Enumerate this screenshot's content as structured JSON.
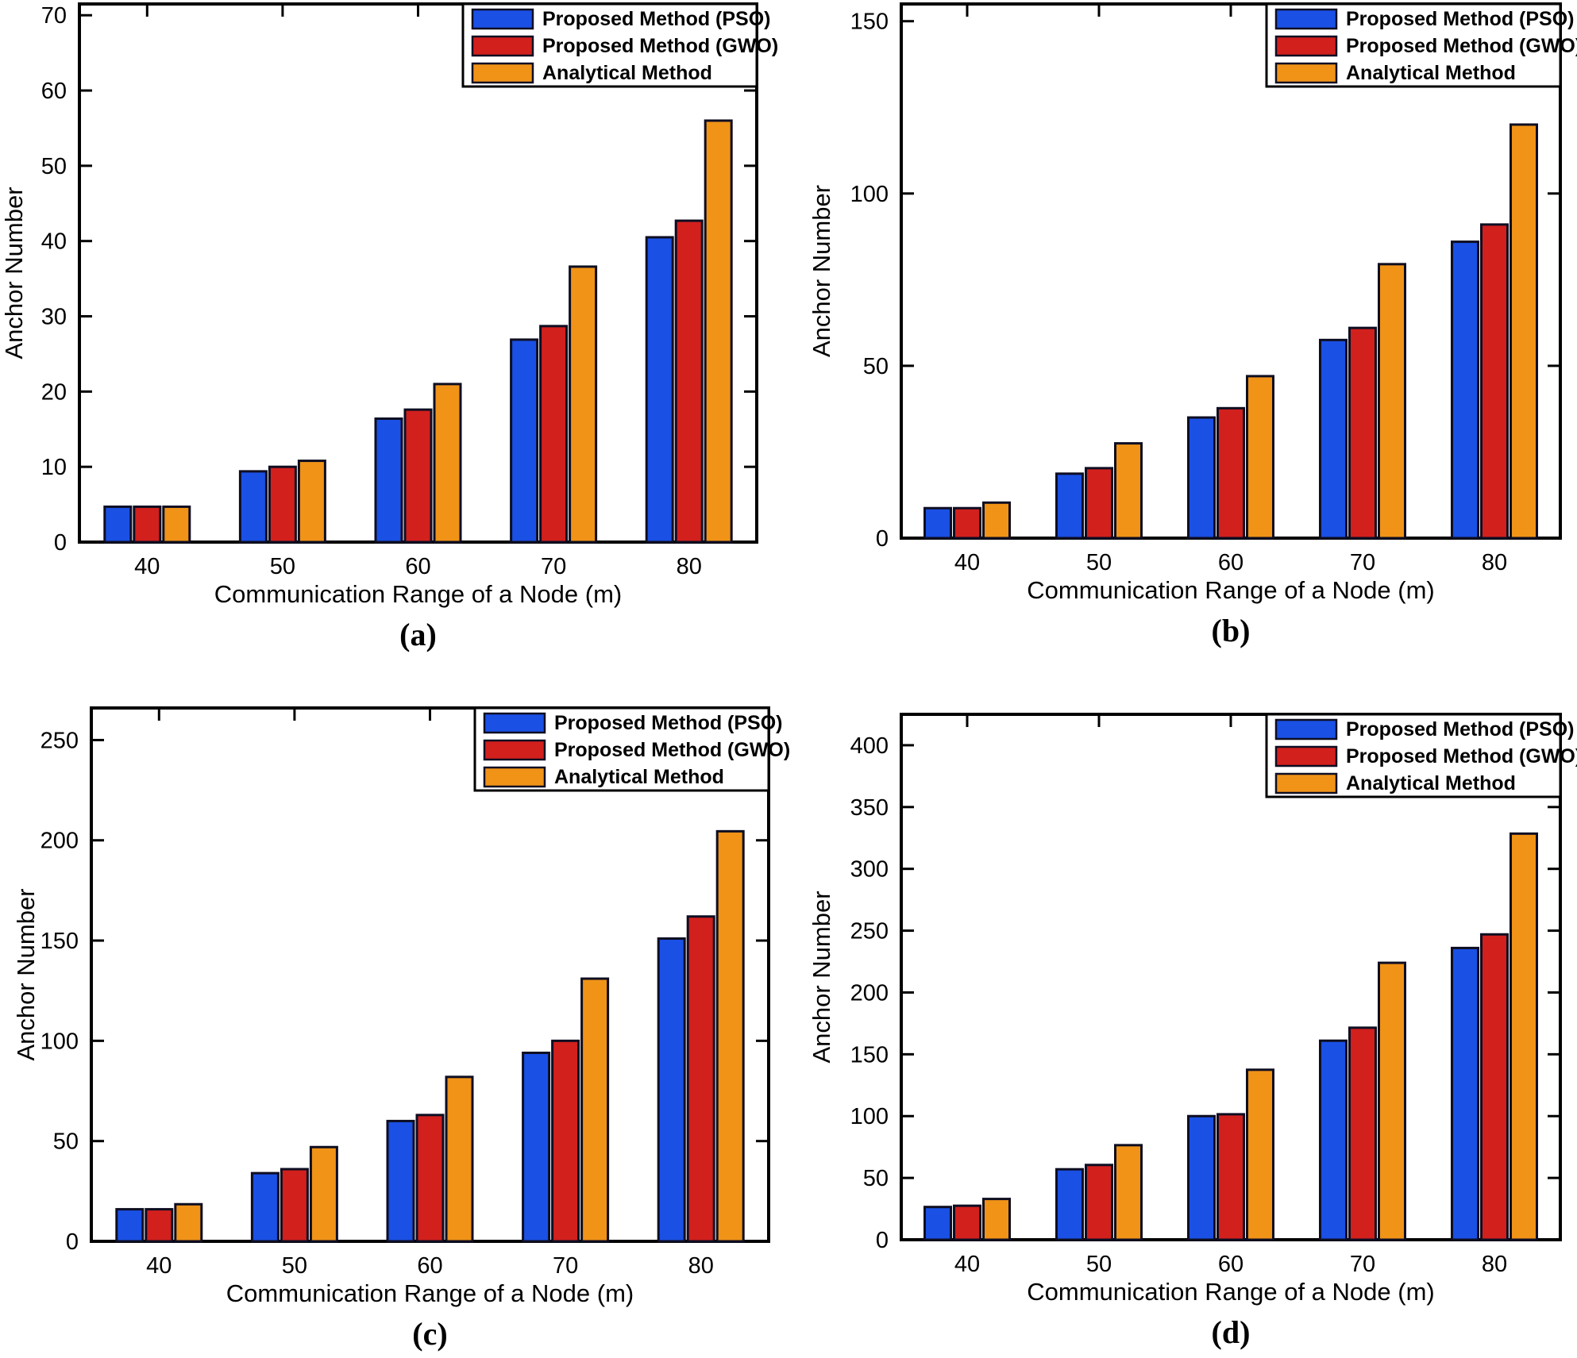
{
  "figure": {
    "xlabel": "Communication Range of a Node (m)",
    "ylabel": "Anchor Number",
    "legend": {
      "position": "top-right-inside",
      "labels": [
        "Proposed Method (PSO)",
        "Proposed Method (GWO)",
        "Analytical Method"
      ]
    },
    "colors": {
      "pso": "#1A50E4",
      "gwo": "#D2201D",
      "analytical": "#F09317",
      "bar_edge": "#0E0E22",
      "axis": "#000000",
      "background": "#ffffff"
    }
  },
  "chart_data": [
    {
      "type": "bar",
      "caption": "(a)",
      "xlabel": "Communication Range of a Node (m)",
      "ylabel": "Anchor Number",
      "grid": false,
      "legend_position": "top-right",
      "categories": [
        40,
        50,
        60,
        70,
        80
      ],
      "yticks": [
        0,
        10,
        20,
        30,
        40,
        50,
        60,
        70
      ],
      "ylim": [
        0,
        71.5
      ],
      "series": [
        {
          "name": "Proposed Method (PSO)",
          "values": [
            4.7,
            9.4,
            16.4,
            26.9,
            40.5
          ]
        },
        {
          "name": "Proposed Method (GWO)",
          "values": [
            4.7,
            10.0,
            17.6,
            28.7,
            42.7
          ]
        },
        {
          "name": "Analytical Method",
          "values": [
            4.7,
            10.8,
            21.0,
            36.6,
            56.0
          ]
        }
      ]
    },
    {
      "type": "bar",
      "caption": "(b)",
      "xlabel": "Communication Range of a Node (m)",
      "ylabel": "Anchor Number",
      "grid": false,
      "legend_position": "top-right",
      "categories": [
        40,
        50,
        60,
        70,
        80
      ],
      "yticks": [
        0,
        50,
        100,
        150
      ],
      "ylim": [
        0,
        155
      ],
      "series": [
        {
          "name": "Proposed Method (PSO)",
          "values": [
            8.7,
            18.7,
            35.0,
            57.5,
            86.0
          ]
        },
        {
          "name": "Proposed Method (GWO)",
          "values": [
            8.7,
            20.3,
            37.7,
            61.0,
            91.0
          ]
        },
        {
          "name": "Analytical Method",
          "values": [
            10.3,
            27.5,
            47.0,
            79.5,
            120.0
          ]
        }
      ]
    },
    {
      "type": "bar",
      "caption": "(c)",
      "xlabel": "Communication Range of a Node (m)",
      "ylabel": "Anchor Number",
      "grid": false,
      "legend_position": "top-right",
      "categories": [
        40,
        50,
        60,
        70,
        80
      ],
      "yticks": [
        0,
        50,
        100,
        150,
        200,
        250
      ],
      "ylim": [
        0,
        266
      ],
      "series": [
        {
          "name": "Proposed Method (PSO)",
          "values": [
            16.0,
            34.0,
            60.0,
            94.0,
            151.0
          ]
        },
        {
          "name": "Proposed Method (GWO)",
          "values": [
            16.0,
            36.0,
            63.0,
            100.0,
            162.0
          ]
        },
        {
          "name": "Analytical Method",
          "values": [
            18.5,
            47.0,
            82.0,
            131.0,
            204.5
          ]
        }
      ]
    },
    {
      "type": "bar",
      "caption": "(d)",
      "xlabel": "Communication Range of a Node (m)",
      "ylabel": "Anchor Number",
      "grid": false,
      "legend_position": "top-right",
      "categories": [
        40,
        50,
        60,
        70,
        80
      ],
      "yticks": [
        0,
        50,
        100,
        150,
        200,
        250,
        300,
        350,
        400
      ],
      "ylim": [
        0,
        425
      ],
      "series": [
        {
          "name": "Proposed Method (PSO)",
          "values": [
            26.5,
            57.0,
            100.0,
            161.0,
            236.0
          ]
        },
        {
          "name": "Proposed Method (GWO)",
          "values": [
            27.5,
            60.5,
            101.5,
            171.5,
            247.0
          ]
        },
        {
          "name": "Analytical Method",
          "values": [
            33.0,
            76.5,
            137.5,
            224.0,
            328.5
          ]
        }
      ]
    }
  ]
}
